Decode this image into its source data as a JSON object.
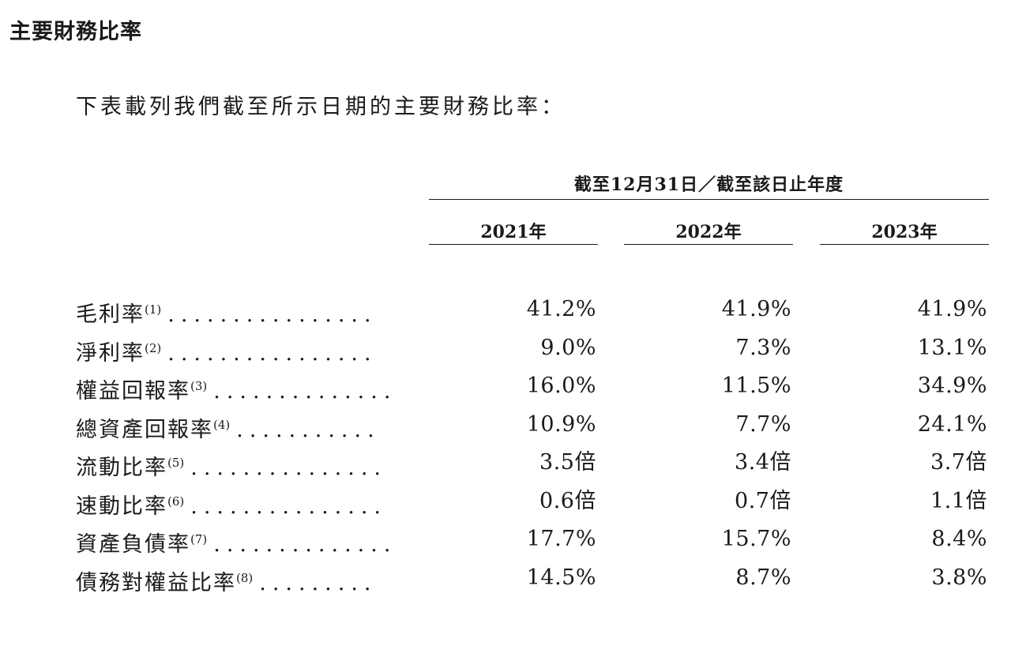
{
  "section_title": "主要財務比率",
  "intro": "下表載列我們截至所示日期的主要財務比率：",
  "table": {
    "period_header": "截至12月31日／截至該日止年度",
    "years": [
      "2021年",
      "2022年",
      "2023年"
    ],
    "rows": [
      {
        "label": "毛利率",
        "note": "(1)",
        "dots": "................",
        "values": [
          "41.2%",
          "41.9%",
          "41.9%"
        ]
      },
      {
        "label": "淨利率",
        "note": "(2)",
        "dots": "................",
        "values": [
          "9.0%",
          "7.3%",
          "13.1%"
        ]
      },
      {
        "label": "權益回報率",
        "note": "(3)",
        "dots": "..............",
        "values": [
          "16.0%",
          "11.5%",
          "34.9%"
        ]
      },
      {
        "label": "總資產回報率",
        "note": "(4)",
        "dots": "...........",
        "values": [
          "10.9%",
          "7.7%",
          "24.1%"
        ]
      },
      {
        "label": "流動比率",
        "note": "(5)",
        "dots": "...............",
        "values": [
          "3.5倍",
          "3.4倍",
          "3.7倍"
        ]
      },
      {
        "label": "速動比率",
        "note": "(6)",
        "dots": "...............",
        "values": [
          "0.6倍",
          "0.7倍",
          "1.1倍"
        ]
      },
      {
        "label": "資產負債率",
        "note": "(7)",
        "dots": "..............",
        "values": [
          "17.7%",
          "15.7%",
          "8.4%"
        ]
      },
      {
        "label": "債務對權益比率",
        "note": "(8)",
        "dots": ".........",
        "values": [
          "14.5%",
          "8.7%",
          "3.8%"
        ]
      }
    ]
  }
}
